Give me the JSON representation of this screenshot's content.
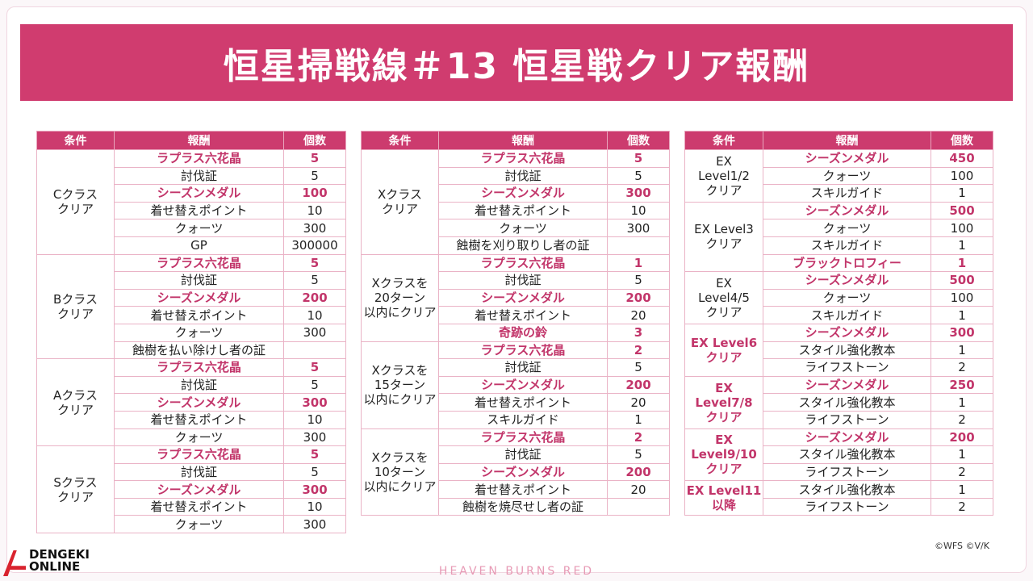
{
  "header": {
    "title": "恒星掃戦線＃13 恒星戦クリア報酬"
  },
  "tables": [
    {
      "columns": [
        "条件",
        "報酬",
        "個数"
      ],
      "groups": [
        {
          "condition": "Cクラス\nクリア",
          "highlight": false,
          "rows": [
            {
              "reward": "ラプラス六花晶",
              "count": 5,
              "highlight": true
            },
            {
              "reward": "討伐証",
              "count": 5,
              "highlight": false
            },
            {
              "reward": "シーズンメダル",
              "count": 100,
              "highlight": true
            },
            {
              "reward": "着せ替えポイント",
              "count": 10,
              "highlight": false
            },
            {
              "reward": "クォーツ",
              "count": 300,
              "highlight": false
            },
            {
              "reward": "GP",
              "count": 300000,
              "highlight": false
            }
          ]
        },
        {
          "condition": "Bクラス\nクリア",
          "highlight": false,
          "rows": [
            {
              "reward": "ラプラス六花晶",
              "count": 5,
              "highlight": true
            },
            {
              "reward": "討伐証",
              "count": 5,
              "highlight": false
            },
            {
              "reward": "シーズンメダル",
              "count": 200,
              "highlight": true
            },
            {
              "reward": "着せ替えポイント",
              "count": 10,
              "highlight": false
            },
            {
              "reward": "クォーツ",
              "count": 300,
              "highlight": false
            },
            {
              "reward": "蝕樹を払い除けし者の証",
              "count": null,
              "highlight": false
            }
          ]
        },
        {
          "condition": "Aクラス\nクリア",
          "highlight": false,
          "rows": [
            {
              "reward": "ラプラス六花晶",
              "count": 5,
              "highlight": true
            },
            {
              "reward": "討伐証",
              "count": 5,
              "highlight": false
            },
            {
              "reward": "シーズンメダル",
              "count": 300,
              "highlight": true
            },
            {
              "reward": "着せ替えポイント",
              "count": 10,
              "highlight": false
            },
            {
              "reward": "クォーツ",
              "count": 300,
              "highlight": false
            }
          ]
        },
        {
          "condition": "Sクラス\nクリア",
          "highlight": false,
          "rows": [
            {
              "reward": "ラプラス六花晶",
              "count": 5,
              "highlight": true
            },
            {
              "reward": "討伐証",
              "count": 5,
              "highlight": false
            },
            {
              "reward": "シーズンメダル",
              "count": 300,
              "highlight": true
            },
            {
              "reward": "着せ替えポイント",
              "count": 10,
              "highlight": false
            },
            {
              "reward": "クォーツ",
              "count": 300,
              "highlight": false
            }
          ]
        }
      ]
    },
    {
      "columns": [
        "条件",
        "報酬",
        "個数"
      ],
      "groups": [
        {
          "condition": "Xクラス\nクリア",
          "highlight": false,
          "rows": [
            {
              "reward": "ラプラス六花晶",
              "count": 5,
              "highlight": true
            },
            {
              "reward": "討伐証",
              "count": 5,
              "highlight": false
            },
            {
              "reward": "シーズンメダル",
              "count": 300,
              "highlight": true
            },
            {
              "reward": "着せ替えポイント",
              "count": 10,
              "highlight": false
            },
            {
              "reward": "クォーツ",
              "count": 300,
              "highlight": false
            },
            {
              "reward": "蝕樹を刈り取りし者の証",
              "count": null,
              "highlight": false
            }
          ]
        },
        {
          "condition": "Xクラスを\n20ターン\n以内にクリア",
          "highlight": false,
          "rows": [
            {
              "reward": "ラプラス六花晶",
              "count": 1,
              "highlight": true
            },
            {
              "reward": "討伐証",
              "count": 5,
              "highlight": false
            },
            {
              "reward": "シーズンメダル",
              "count": 200,
              "highlight": true
            },
            {
              "reward": "着せ替えポイント",
              "count": 20,
              "highlight": false
            },
            {
              "reward": "奇跡の鈴",
              "count": 3,
              "highlight": true
            }
          ]
        },
        {
          "condition": "Xクラスを\n15ターン\n以内にクリア",
          "highlight": false,
          "rows": [
            {
              "reward": "ラプラス六花晶",
              "count": 2,
              "highlight": true
            },
            {
              "reward": "討伐証",
              "count": 5,
              "highlight": false
            },
            {
              "reward": "シーズンメダル",
              "count": 200,
              "highlight": true
            },
            {
              "reward": "着せ替えポイント",
              "count": 20,
              "highlight": false
            },
            {
              "reward": "スキルガイド",
              "count": 1,
              "highlight": false
            }
          ]
        },
        {
          "condition": "Xクラスを\n10ターン\n以内にクリア",
          "highlight": false,
          "rows": [
            {
              "reward": "ラプラス六花晶",
              "count": 2,
              "highlight": true
            },
            {
              "reward": "討伐証",
              "count": 5,
              "highlight": false
            },
            {
              "reward": "シーズンメダル",
              "count": 200,
              "highlight": true
            },
            {
              "reward": "着せ替えポイント",
              "count": 20,
              "highlight": false
            },
            {
              "reward": "蝕樹を焼尽せし者の証",
              "count": null,
              "highlight": false
            }
          ]
        }
      ]
    },
    {
      "columns": [
        "条件",
        "報酬",
        "個数"
      ],
      "groups": [
        {
          "condition": "EX\nLevel1/2\nクリア",
          "highlight": false,
          "rows": [
            {
              "reward": "シーズンメダル",
              "count": 450,
              "highlight": true
            },
            {
              "reward": "クォーツ",
              "count": 100,
              "highlight": false
            },
            {
              "reward": "スキルガイド",
              "count": 1,
              "highlight": false
            }
          ]
        },
        {
          "condition": "EX Level3\nクリア",
          "highlight": false,
          "rows": [
            {
              "reward": "シーズンメダル",
              "count": 500,
              "highlight": true
            },
            {
              "reward": "クォーツ",
              "count": 100,
              "highlight": false
            },
            {
              "reward": "スキルガイド",
              "count": 1,
              "highlight": false
            },
            {
              "reward": "ブラックトロフィー",
              "count": 1,
              "highlight": true
            }
          ]
        },
        {
          "condition": "EX\nLevel4/5\nクリア",
          "highlight": false,
          "rows": [
            {
              "reward": "シーズンメダル",
              "count": 500,
              "highlight": true
            },
            {
              "reward": "クォーツ",
              "count": 100,
              "highlight": false
            },
            {
              "reward": "スキルガイド",
              "count": 1,
              "highlight": false
            }
          ]
        },
        {
          "condition": "EX Level6\nクリア",
          "highlight": true,
          "rows": [
            {
              "reward": "シーズンメダル",
              "count": 300,
              "highlight": true
            },
            {
              "reward": "スタイル強化教本",
              "count": 1,
              "highlight": false
            },
            {
              "reward": "ライフストーン",
              "count": 2,
              "highlight": false
            }
          ]
        },
        {
          "condition": "EX\nLevel7/8\nクリア",
          "highlight": true,
          "rows": [
            {
              "reward": "シーズンメダル",
              "count": 250,
              "highlight": true
            },
            {
              "reward": "スタイル強化教本",
              "count": 1,
              "highlight": false
            },
            {
              "reward": "ライフストーン",
              "count": 2,
              "highlight": false
            }
          ]
        },
        {
          "condition": "EX\nLevel9/10\nクリア",
          "highlight": true,
          "rows": [
            {
              "reward": "シーズンメダル",
              "count": 200,
              "highlight": true
            },
            {
              "reward": "スタイル強化教本",
              "count": 1,
              "highlight": false
            },
            {
              "reward": "ライフストーン",
              "count": 2,
              "highlight": false
            }
          ]
        },
        {
          "condition": "EX Level11\n以降",
          "highlight": true,
          "rows": [
            {
              "reward": "スタイル強化教本",
              "count": 1,
              "highlight": false
            },
            {
              "reward": "ライフストーン",
              "count": 2,
              "highlight": false
            }
          ]
        }
      ]
    }
  ],
  "footer": {
    "copyright": "©WFS ©V/K",
    "brand": "HEAVEN BURNS RED",
    "watermark": "DENGEKI\nONLINE"
  }
}
